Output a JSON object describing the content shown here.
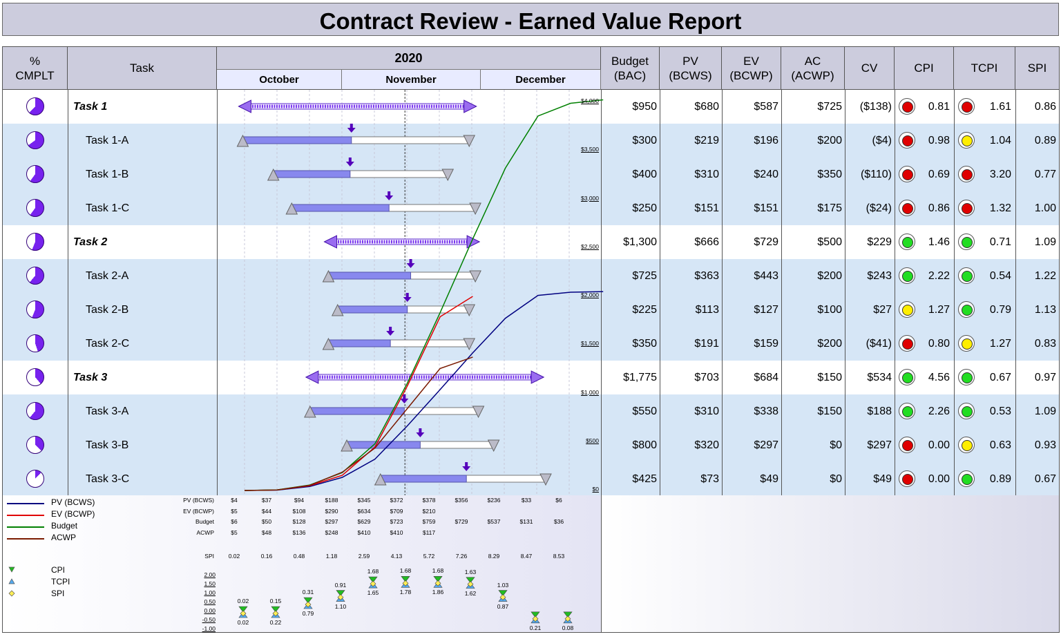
{
  "title": "Contract Review - Earned Value Report",
  "headers": {
    "pct": "% CMPLT",
    "task": "Task",
    "year": "2020",
    "months": [
      "October",
      "November",
      "December"
    ],
    "bac": "Budget (BAC)",
    "pv": "PV (BCWS)",
    "ev": "EV (BCWP)",
    "ac": "AC (ACWP)",
    "cv": "CV",
    "cpi": "CPI",
    "tcpi": "TCPI",
    "spi": "SPI"
  },
  "tasks": [
    {
      "name": "Task 1",
      "level": "summary",
      "pct": 62,
      "bac": "$950",
      "pv": "$680",
      "ev": "$587",
      "ac": "$725",
      "cv": "($138)",
      "cpi": "0.81",
      "cpi_status": "#e00000",
      "tcpi": "1.61",
      "tcpi_status": "#e00000",
      "spi": "0.86"
    },
    {
      "name": "Task 1-A",
      "level": "detail",
      "pct": 65,
      "bac": "$300",
      "pv": "$219",
      "ev": "$196",
      "ac": "$200",
      "cv": "($4)",
      "cpi": "0.98",
      "cpi_status": "#e00000",
      "tcpi": "1.04",
      "tcpi_status": "#ffee00",
      "spi": "0.89"
    },
    {
      "name": "Task 1-B",
      "level": "detail",
      "pct": 60,
      "bac": "$400",
      "pv": "$310",
      "ev": "$240",
      "ac": "$350",
      "cv": "($110)",
      "cpi": "0.69",
      "cpi_status": "#e00000",
      "tcpi": "3.20",
      "tcpi_status": "#e00000",
      "spi": "0.77"
    },
    {
      "name": "Task 1-C",
      "level": "detail",
      "pct": 60,
      "bac": "$250",
      "pv": "$151",
      "ev": "$151",
      "ac": "$175",
      "cv": "($24)",
      "cpi": "0.86",
      "cpi_status": "#e00000",
      "tcpi": "1.32",
      "tcpi_status": "#e00000",
      "spi": "1.00"
    },
    {
      "name": "Task 2",
      "level": "summary",
      "pct": 56,
      "bac": "$1,300",
      "pv": "$666",
      "ev": "$729",
      "ac": "$500",
      "cv": "$229",
      "cpi": "1.46",
      "cpi_status": "#22dd22",
      "tcpi": "0.71",
      "tcpi_status": "#22dd22",
      "spi": "1.09"
    },
    {
      "name": "Task 2-A",
      "level": "detail",
      "pct": 61,
      "bac": "$725",
      "pv": "$363",
      "ev": "$443",
      "ac": "$200",
      "cv": "$243",
      "cpi": "2.22",
      "cpi_status": "#22dd22",
      "tcpi": "0.54",
      "tcpi_status": "#22dd22",
      "spi": "1.22"
    },
    {
      "name": "Task 2-B",
      "level": "detail",
      "pct": 56,
      "bac": "$225",
      "pv": "$113",
      "ev": "$127",
      "ac": "$100",
      "cv": "$27",
      "cpi": "1.27",
      "cpi_status": "#ffee00",
      "tcpi": "0.79",
      "tcpi_status": "#22dd22",
      "spi": "1.13"
    },
    {
      "name": "Task 2-C",
      "level": "detail",
      "pct": 45,
      "bac": "$350",
      "pv": "$191",
      "ev": "$159",
      "ac": "$200",
      "cv": "($41)",
      "cpi": "0.80",
      "cpi_status": "#e00000",
      "tcpi": "1.27",
      "tcpi_status": "#ffee00",
      "spi": "0.83"
    },
    {
      "name": "Task 3",
      "level": "summary",
      "pct": 39,
      "bac": "$1,775",
      "pv": "$703",
      "ev": "$684",
      "ac": "$150",
      "cv": "$534",
      "cpi": "4.56",
      "cpi_status": "#22dd22",
      "tcpi": "0.67",
      "tcpi_status": "#22dd22",
      "spi": "0.97"
    },
    {
      "name": "Task 3-A",
      "level": "detail",
      "pct": 61,
      "bac": "$550",
      "pv": "$310",
      "ev": "$338",
      "ac": "$150",
      "cv": "$188",
      "cpi": "2.26",
      "cpi_status": "#22dd22",
      "tcpi": "0.53",
      "tcpi_status": "#22dd22",
      "spi": "1.09"
    },
    {
      "name": "Task 3-B",
      "level": "detail",
      "pct": 37,
      "bac": "$800",
      "pv": "$320",
      "ev": "$297",
      "ac": "$0",
      "cv": "$297",
      "cpi": "0.00",
      "cpi_status": "#e00000",
      "tcpi": "0.63",
      "tcpi_status": "#ffee00",
      "spi": "0.93"
    },
    {
      "name": "Task 3-C",
      "level": "detail",
      "pct": 12,
      "bac": "$425",
      "pv": "$73",
      "ev": "$49",
      "ac": "$0",
      "cv": "$49",
      "cpi": "0.00",
      "cpi_status": "#e00000",
      "tcpi": "0.89",
      "tcpi_status": "#22dd22",
      "spi": "0.67"
    }
  ],
  "gantt": {
    "bars": [
      {
        "type": "summary",
        "start": 1,
        "end": 76,
        "progress": null
      },
      {
        "type": "detail",
        "start": 1,
        "end": 75,
        "progress": 48
      },
      {
        "type": "detail",
        "start": 11,
        "end": 68,
        "progress": 44
      },
      {
        "type": "detail",
        "start": 17,
        "end": 77,
        "progress": 53
      },
      {
        "type": "summary",
        "start": 29,
        "end": 77,
        "progress": null
      },
      {
        "type": "detail",
        "start": 29,
        "end": 77,
        "progress": 56
      },
      {
        "type": "detail",
        "start": 32,
        "end": 75,
        "progress": 53
      },
      {
        "type": "detail",
        "start": 29,
        "end": 75,
        "progress": 44
      },
      {
        "type": "summary",
        "start": 23,
        "end": 98,
        "progress": null
      },
      {
        "type": "detail",
        "start": 23,
        "end": 78,
        "progress": 56
      },
      {
        "type": "detail",
        "start": 35,
        "end": 83,
        "progress": 50
      },
      {
        "type": "detail",
        "start": 46,
        "end": 100,
        "progress": 52
      }
    ],
    "status_day": 54
  },
  "curve_axis": [
    "$4,000",
    "$3,500",
    "$3,000",
    "$2,500",
    "$2,000",
    "$1,500",
    "$1,000",
    "$500",
    "$0"
  ],
  "chart_data": {
    "type": "line",
    "title": "",
    "ylim": [
      0,
      4000
    ],
    "x_points": 11,
    "series": [
      {
        "name": "PV (BCWS)",
        "color": "#000080",
        "values": [
          4,
          37,
          94,
          188,
          345,
          372,
          378,
          356,
          236,
          33,
          6
        ]
      },
      {
        "name": "EV (BCWP)",
        "color": "#e00000",
        "values": [
          5,
          44,
          108,
          290,
          634,
          709,
          210
        ]
      },
      {
        "name": "Budget",
        "color": "#008000",
        "values": [
          6,
          50,
          128,
          297,
          629,
          723,
          759,
          729,
          537,
          131,
          36
        ]
      },
      {
        "name": "ACWP",
        "color": "#7a1a00",
        "values": [
          5,
          48,
          136,
          248,
          410,
          410,
          117
        ]
      }
    ]
  },
  "data_table": {
    "row_labels": [
      "PV (BCWS)",
      "EV (BCWP)",
      "Budget",
      "ACWP"
    ],
    "rows": [
      [
        "$4",
        "$37",
        "$94",
        "$188",
        "$345",
        "$372",
        "$378",
        "$356",
        "$236",
        "$33",
        "$6"
      ],
      [
        "$5",
        "$44",
        "$108",
        "$290",
        "$634",
        "$709",
        "$210",
        "",
        "",
        "",
        ""
      ],
      [
        "$6",
        "$50",
        "$128",
        "$297",
        "$629",
        "$723",
        "$759",
        "$729",
        "$537",
        "$131",
        "$36"
      ],
      [
        "$5",
        "$48",
        "$136",
        "$248",
        "$410",
        "$410",
        "$117",
        "",
        "",
        "",
        ""
      ]
    ],
    "spi_label": "SPI",
    "spi_values": [
      "0.02",
      "0.16",
      "0.48",
      "1.18",
      "2.59",
      "4.13",
      "5.72",
      "7.26",
      "8.29",
      "8.47",
      "8.53"
    ]
  },
  "index_legend": [
    "CPI",
    "TCPI",
    "SPI"
  ],
  "index_axis": [
    "2.00",
    "1.50",
    "1.00",
    "0.50",
    "0.00",
    "-0.50",
    "-1.00"
  ],
  "index_points": [
    {
      "top": "0.02",
      "bottom": "0.02",
      "y": 0.0
    },
    {
      "top": "0.15",
      "bottom": "0.22",
      "y": 0.0
    },
    {
      "top": "0.31",
      "bottom": "0.79",
      "y": 0.5
    },
    {
      "top": "0.91",
      "bottom": "1.10",
      "y": 0.9
    },
    {
      "top": "1.68",
      "bottom": "1.65",
      "y": 1.65
    },
    {
      "top": "1.68",
      "bottom": "1.78",
      "y": 1.68
    },
    {
      "top": "1.68",
      "bottom": "1.86",
      "y": 1.68
    },
    {
      "top": "1.63",
      "bottom": "1.62",
      "y": 1.63
    },
    {
      "top": "1.03",
      "bottom": "0.87",
      "y": 0.9
    },
    {
      "top": "",
      "bottom": "0.21",
      "y": -0.3
    },
    {
      "top": "",
      "bottom": "0.08",
      "y": -0.3
    }
  ]
}
